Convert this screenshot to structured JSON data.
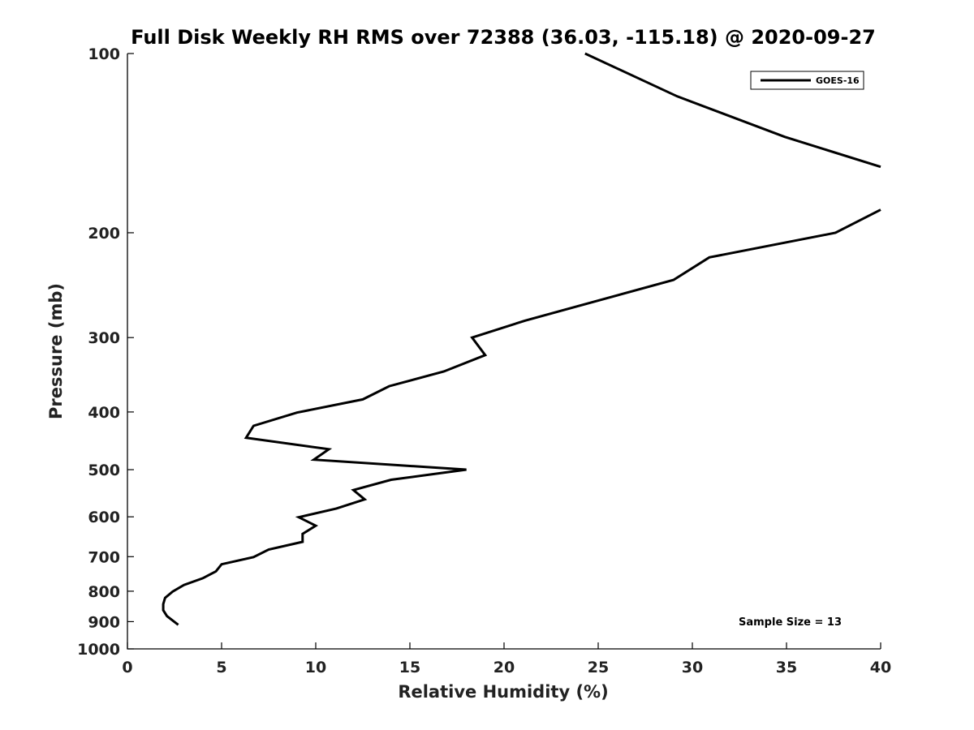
{
  "chart_data": {
    "type": "line",
    "title": "Full Disk Weekly RH RMS over 72388 (36.03, -115.18) @ 2020-09-27",
    "xlabel": "Relative Humidity (%)",
    "ylabel": "Pressure (mb)",
    "xlim": [
      0,
      40
    ],
    "ylim": [
      1000,
      100
    ],
    "yscale": "log",
    "y_reversed": true,
    "grid": false,
    "legend_position": "top-right",
    "xticks": [
      0,
      5,
      10,
      15,
      20,
      25,
      30,
      35,
      40
    ],
    "yticks": [
      100,
      200,
      300,
      400,
      500,
      600,
      700,
      800,
      900,
      1000
    ],
    "series": [
      {
        "name": "GOES-16",
        "color": "#000000",
        "segments": [
          [
            {
              "x": 24.3,
              "p": 100
            },
            {
              "x": 29.2,
              "p": 118
            },
            {
              "x": 34.9,
              "p": 138
            },
            {
              "x": 40.0,
              "p": 155
            }
          ],
          [
            {
              "x": 40.0,
              "p": 183
            },
            {
              "x": 37.6,
              "p": 200
            },
            {
              "x": 30.9,
              "p": 220
            },
            {
              "x": 29.0,
              "p": 240
            },
            {
              "x": 21.1,
              "p": 281
            },
            {
              "x": 18.3,
              "p": 300
            },
            {
              "x": 19.0,
              "p": 321
            },
            {
              "x": 16.8,
              "p": 342
            },
            {
              "x": 13.9,
              "p": 362
            },
            {
              "x": 12.5,
              "p": 381
            },
            {
              "x": 9.0,
              "p": 401
            },
            {
              "x": 6.7,
              "p": 422
            },
            {
              "x": 6.3,
              "p": 442
            },
            {
              "x": 10.7,
              "p": 462
            },
            {
              "x": 9.9,
              "p": 481
            },
            {
              "x": 18.0,
              "p": 500
            },
            {
              "x": 14.0,
              "p": 520
            },
            {
              "x": 12.0,
              "p": 541
            },
            {
              "x": 12.6,
              "p": 561
            },
            {
              "x": 11.1,
              "p": 581
            },
            {
              "x": 9.1,
              "p": 601
            },
            {
              "x": 10.0,
              "p": 621
            },
            {
              "x": 9.3,
              "p": 641
            },
            {
              "x": 9.3,
              "p": 661
            },
            {
              "x": 7.5,
              "p": 681
            },
            {
              "x": 6.7,
              "p": 701
            },
            {
              "x": 5.0,
              "p": 721
            },
            {
              "x": 4.7,
              "p": 741
            },
            {
              "x": 4.0,
              "p": 761
            },
            {
              "x": 3.0,
              "p": 781
            },
            {
              "x": 2.4,
              "p": 801
            },
            {
              "x": 2.0,
              "p": 821
            },
            {
              "x": 1.9,
              "p": 841
            },
            {
              "x": 1.9,
              "p": 861
            },
            {
              "x": 2.1,
              "p": 881
            },
            {
              "x": 2.7,
              "p": 911
            }
          ]
        ]
      }
    ],
    "annotation": "Sample Size = 13"
  }
}
